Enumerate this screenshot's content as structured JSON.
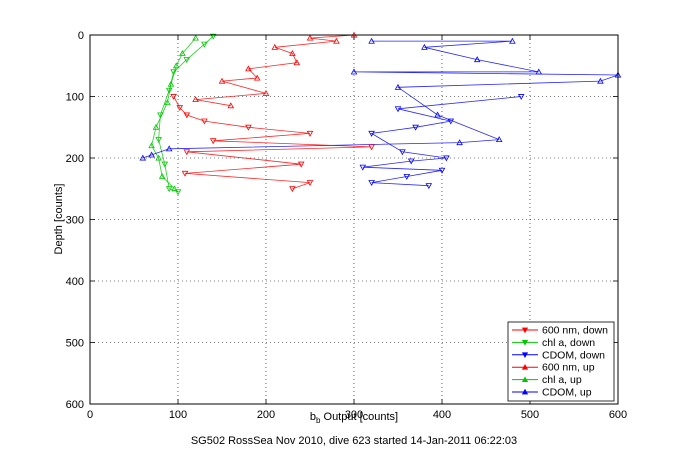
{
  "chart_data": {
    "type": "scatter",
    "xlabel_main": "b",
    "xlabel_sub": "b",
    "xlabel_rest": " Output [counts]",
    "ylabel": "Depth [counts]",
    "caption": "SG502 RossSea Nov 2010, dive 623 started 14-Jan-2011 06:22:03",
    "xlim": [
      0,
      600
    ],
    "ylim": [
      0,
      600
    ],
    "y_reversed": true,
    "xticks": [
      "0",
      "100",
      "200",
      "300",
      "400",
      "500",
      "600"
    ],
    "yticks": [
      "0",
      "100",
      "200",
      "300",
      "400",
      "500",
      "600"
    ],
    "grid": true,
    "legend_position": "bottom-right",
    "series": [
      {
        "name": "600 nm, down",
        "color": "#ff0000",
        "marker": "triangle-down",
        "points": [
          [
            95,
            100
          ],
          [
            102,
            118
          ],
          [
            110,
            130
          ],
          [
            130,
            140
          ],
          [
            180,
            150
          ],
          [
            250,
            160
          ],
          [
            140,
            172
          ],
          [
            320,
            182
          ],
          [
            110,
            190
          ],
          [
            240,
            210
          ],
          [
            250,
            240
          ],
          [
            108,
            225
          ],
          [
            230,
            250
          ]
        ]
      },
      {
        "name": "chl a, down",
        "color": "#00c800",
        "marker": "triangle-down",
        "points": [
          [
            140,
            2
          ],
          [
            130,
            15
          ],
          [
            110,
            40
          ],
          [
            95,
            60
          ],
          [
            90,
            90
          ],
          [
            80,
            130
          ],
          [
            78,
            170
          ],
          [
            85,
            210
          ],
          [
            90,
            250
          ],
          [
            100,
            255
          ]
        ]
      },
      {
        "name": "CDOM, down",
        "color": "#0000ff",
        "marker": "triangle-down",
        "points": [
          [
            490,
            100
          ],
          [
            350,
            120
          ],
          [
            410,
            140
          ],
          [
            370,
            150
          ],
          [
            320,
            160
          ],
          [
            355,
            190
          ],
          [
            405,
            200
          ],
          [
            365,
            205
          ],
          [
            310,
            215
          ],
          [
            400,
            220
          ],
          [
            360,
            230
          ],
          [
            320,
            240
          ],
          [
            385,
            245
          ]
        ]
      },
      {
        "name": "600 nm, up",
        "color": "#ff0000",
        "marker": "triangle-up",
        "points": [
          [
            150,
            75
          ],
          [
            180,
            55
          ],
          [
            210,
            20
          ],
          [
            250,
            5
          ],
          [
            280,
            10
          ],
          [
            300,
            0
          ],
          [
            230,
            30
          ],
          [
            120,
            105
          ],
          [
            160,
            115
          ],
          [
            200,
            95
          ],
          [
            235,
            45
          ],
          [
            190,
            70
          ]
        ]
      },
      {
        "name": "chl a, up",
        "color": "#00c800",
        "marker": "triangle-up",
        "points": [
          [
            120,
            5
          ],
          [
            105,
            30
          ],
          [
            98,
            50
          ],
          [
            92,
            80
          ],
          [
            88,
            110
          ],
          [
            75,
            150
          ],
          [
            70,
            180
          ],
          [
            78,
            200
          ],
          [
            82,
            230
          ],
          [
            96,
            250
          ]
        ]
      },
      {
        "name": "CDOM, up",
        "color": "#0000ff",
        "marker": "triangle-up",
        "points": [
          [
            320,
            10
          ],
          [
            380,
            20
          ],
          [
            440,
            40
          ],
          [
            510,
            60
          ],
          [
            580,
            75
          ],
          [
            600,
            65
          ],
          [
            480,
            10
          ],
          [
            465,
            170
          ],
          [
            420,
            175
          ],
          [
            395,
            130
          ],
          [
            350,
            85
          ],
          [
            300,
            60
          ],
          [
            60,
            200
          ],
          [
            70,
            195
          ],
          [
            90,
            185
          ]
        ]
      }
    ]
  }
}
